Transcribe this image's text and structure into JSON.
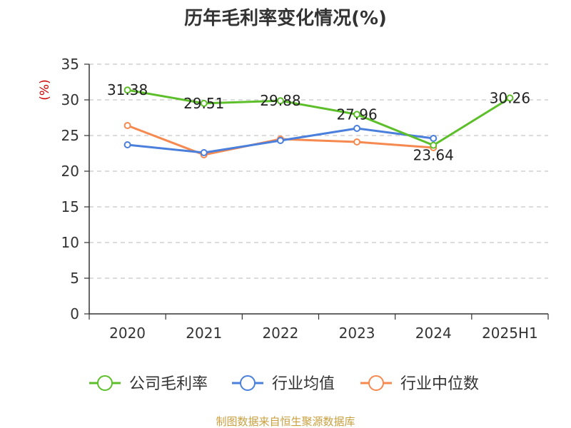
{
  "chart_data": {
    "type": "line",
    "title": "历年毛利率变化情况(%)",
    "ylabel": "(%)",
    "categories": [
      "2020",
      "2021",
      "2022",
      "2023",
      "2024",
      "2025H1"
    ],
    "ylim": [
      0,
      35
    ],
    "yticks": [
      0,
      5,
      10,
      15,
      20,
      25,
      30,
      35
    ],
    "grid": "horizontal-dashed",
    "legend_position": "bottom",
    "series": [
      {
        "name": "公司毛利率",
        "color": "#5cbf2a",
        "values": [
          31.38,
          29.51,
          29.88,
          27.96,
          23.64,
          30.26
        ],
        "labels": [
          "31.38",
          "29.51",
          "29.88",
          "27.96",
          "23.64",
          "30.26"
        ]
      },
      {
        "name": "行业均值",
        "color": "#4a7fdc",
        "values": [
          23.7,
          22.6,
          24.3,
          26.0,
          24.6,
          null
        ]
      },
      {
        "name": "行业中位数",
        "color": "#f5894f",
        "values": [
          26.4,
          22.3,
          24.5,
          24.1,
          23.3,
          null
        ]
      }
    ]
  },
  "source": "制图数据来自恒生聚源数据库"
}
